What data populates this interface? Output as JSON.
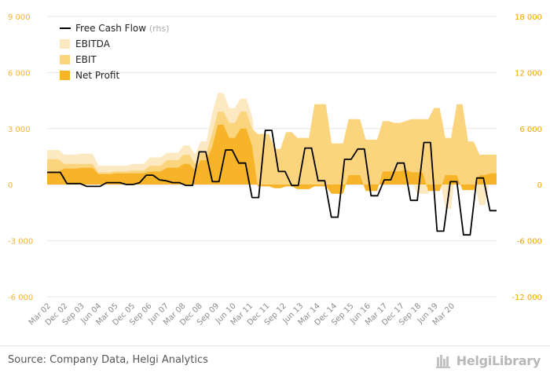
{
  "colors": {
    "ebitda": "#fde9c1",
    "ebit": "#fbd47e",
    "net_profit": "#f7b428",
    "fcf": "#000000",
    "axis_text_left": "#f5b335",
    "axis_text_right": "#f0a500",
    "grid": "#e8e8e8",
    "x_labels": "#8c8c8c"
  },
  "chart_data": {
    "type": "area",
    "title": "",
    "x_ticks": [
      "Mar 02",
      "Dec 02",
      "Sep 03",
      "Jun 04",
      "Mar 05",
      "Dec 05",
      "Sep 06",
      "Jun 07",
      "Mar 08",
      "Dec 08",
      "Sep 09",
      "Jun 10",
      "Mar 11",
      "Dec 11",
      "Sep 12",
      "Jun 13",
      "Mar 14",
      "Dec 14",
      "Sep 15",
      "Jun 16",
      "Mar 17",
      "Dec 17",
      "Sep 18",
      "Jun 19",
      "Mar 20"
    ],
    "y_left": {
      "ticks": [
        "9 000",
        "6 000",
        "3 000",
        "0",
        "-3 000",
        "-6 000"
      ],
      "min": -6000,
      "max": 9000
    },
    "y_right": {
      "ticks": [
        "18 000",
        "12 000",
        "6 000",
        "0",
        "-6 000",
        "-12 000"
      ],
      "min": -12000,
      "max": 18000
    },
    "legend": {
      "position": "top-left",
      "items": [
        {
          "label": "Free Cash Flow",
          "suffix": "(rhs)",
          "kind": "line"
        },
        {
          "label": "EBITDA",
          "kind": "area"
        },
        {
          "label": "EBIT",
          "kind": "area"
        },
        {
          "label": "Net Profit",
          "kind": "area"
        }
      ]
    },
    "series": [
      {
        "name": "EBITDA",
        "axis": "left",
        "values": [
          1850,
          1850,
          1850,
          1600,
          1600,
          1600,
          1650,
          1650,
          1650,
          1000,
          1000,
          1000,
          1000,
          1000,
          1000,
          1100,
          1100,
          1100,
          1450,
          1450,
          1450,
          1700,
          1700,
          1700,
          2100,
          2100,
          1600,
          2300,
          2300,
          3800,
          4900,
          4900,
          4100,
          4100,
          4600,
          4600,
          3700,
          1400,
          1400,
          1400,
          1000,
          1000,
          1900,
          1900,
          1100,
          1100,
          1100,
          1400,
          1400,
          1400,
          -200,
          -200,
          -200,
          300,
          300,
          300,
          100,
          100,
          100,
          400,
          400,
          200,
          300,
          300,
          300,
          -500,
          -500,
          -500,
          300,
          300,
          -1300,
          -1300,
          1300,
          1300,
          200,
          200,
          -1100,
          -1100,
          700,
          700
        ]
      },
      {
        "name": "EBIT",
        "axis": "left",
        "values": [
          1350,
          1350,
          1350,
          1100,
          1100,
          1100,
          1100,
          1100,
          1100,
          650,
          650,
          650,
          700,
          700,
          700,
          750,
          750,
          750,
          1000,
          1000,
          1000,
          1300,
          1300,
          1300,
          1600,
          1600,
          1100,
          1700,
          1700,
          2700,
          3900,
          3900,
          3300,
          3300,
          3900,
          3900,
          3000,
          2700,
          2700,
          2700,
          1900,
          1900,
          2800,
          2800,
          2500,
          2500,
          2500,
          4300,
          4300,
          4300,
          2200,
          2200,
          2200,
          3500,
          3500,
          3500,
          2400,
          2400,
          2400,
          3400,
          3400,
          3300,
          3300,
          3400,
          3500,
          3500,
          3500,
          3500,
          4100,
          4100,
          2500,
          2500,
          4300,
          4300,
          2300,
          2300,
          1600,
          1600,
          1600,
          1600
        ]
      },
      {
        "name": "Net Profit",
        "axis": "left",
        "values": [
          700,
          700,
          700,
          850,
          850,
          850,
          900,
          900,
          900,
          550,
          550,
          550,
          600,
          600,
          600,
          600,
          600,
          600,
          700,
          700,
          700,
          900,
          900,
          900,
          1100,
          1100,
          750,
          1300,
          1300,
          2000,
          3200,
          3200,
          2500,
          2500,
          3000,
          3000,
          2100,
          -100,
          -100,
          -100,
          -200,
          -200,
          -100,
          -100,
          -250,
          -250,
          -250,
          -100,
          -100,
          -100,
          -500,
          -500,
          -500,
          500,
          500,
          500,
          -350,
          -350,
          -350,
          700,
          700,
          700,
          700,
          800,
          650,
          650,
          650,
          -350,
          -350,
          -350,
          500,
          500,
          500,
          -300,
          -300,
          -300,
          500,
          500,
          600,
          600
        ]
      },
      {
        "name": "Free Cash Flow",
        "axis": "right",
        "values": [
          1300,
          1300,
          1300,
          100,
          100,
          100,
          -200,
          -200,
          -200,
          200,
          200,
          200,
          0,
          0,
          200,
          1000,
          1000,
          500,
          400,
          200,
          200,
          -100,
          -100,
          3500,
          3500,
          300,
          300,
          3700,
          3700,
          2300,
          2300,
          -1400,
          -1400,
          5800,
          5800,
          1400,
          1400,
          -100,
          -100,
          3900,
          3900,
          400,
          400,
          -3500,
          -3500,
          2700,
          2700,
          3800,
          3800,
          -1200,
          -1200,
          500,
          500,
          2300,
          2300,
          -1700,
          -1700,
          4500,
          4500,
          -5000,
          -5000,
          300,
          300,
          -5400,
          -5400,
          700,
          700,
          -2800,
          -2800
        ]
      }
    ]
  },
  "footer": {
    "source": "Source: Company Data, Helgi Analytics",
    "brand": "HelgiLibrary"
  }
}
